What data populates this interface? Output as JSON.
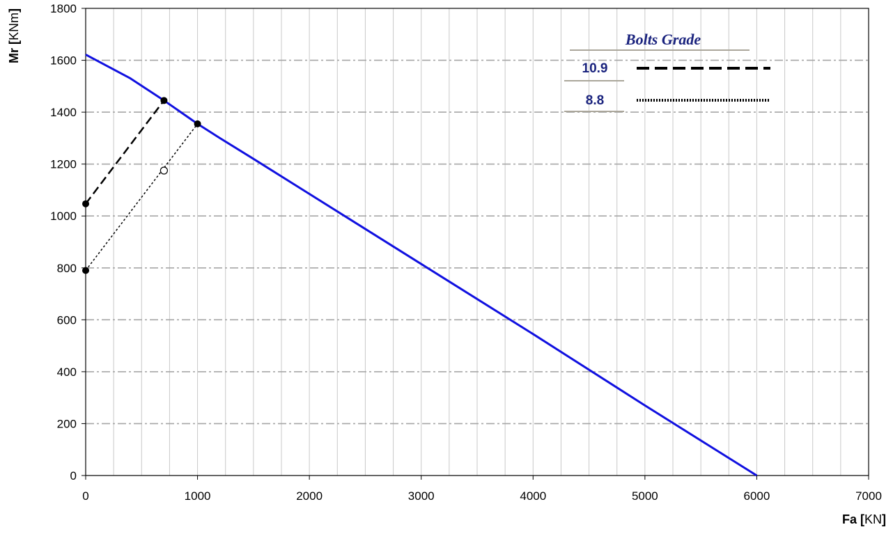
{
  "chart_data": {
    "type": "line",
    "xlabel": {
      "bold": "Fa",
      "bracket_open": " [",
      "unit": "KN",
      "bracket_close": "]"
    },
    "ylabel": {
      "bold": "Mr",
      "bracket_open": " [",
      "unit": "KNm",
      "bracket_close": "]"
    },
    "xlim": [
      0,
      7000
    ],
    "ylim": [
      0,
      1800
    ],
    "xticks": [
      0,
      1000,
      2000,
      3000,
      4000,
      5000,
      6000,
      7000
    ],
    "yticks": [
      0,
      200,
      400,
      600,
      800,
      1000,
      1200,
      1400,
      1600,
      1800
    ],
    "x_minor_step": 250,
    "grid": true,
    "legend": {
      "title": "Bolts Grade",
      "position": "top-right",
      "entries": [
        {
          "label": "10.9",
          "style": "dashed",
          "color": "#000000"
        },
        {
          "label": "8.8",
          "style": "dotted",
          "color": "#000000"
        }
      ]
    },
    "series": [
      {
        "style": "solid",
        "color": "#1010e0",
        "points": [
          [
            0,
            1622
          ],
          [
            400,
            1530
          ],
          [
            700,
            1445
          ],
          [
            1000,
            1355
          ],
          [
            1200,
            1300
          ],
          [
            1500,
            1220
          ],
          [
            2000,
            1085
          ],
          [
            3000,
            815
          ],
          [
            4000,
            545
          ],
          [
            5000,
            270
          ],
          [
            6000,
            0
          ]
        ]
      },
      {
        "style": "dashed",
        "color": "#000000",
        "points": [
          [
            0,
            1047
          ],
          [
            700,
            1445
          ]
        ],
        "markers": [
          [
            0,
            1047
          ],
          [
            700,
            1445
          ]
        ]
      },
      {
        "style": "dotted",
        "color": "#000000",
        "points": [
          [
            0,
            790
          ],
          [
            1000,
            1355
          ]
        ],
        "markers": [
          [
            0,
            790
          ],
          [
            1000,
            1355
          ]
        ],
        "open_markers": [
          [
            700,
            1175
          ]
        ]
      }
    ]
  }
}
